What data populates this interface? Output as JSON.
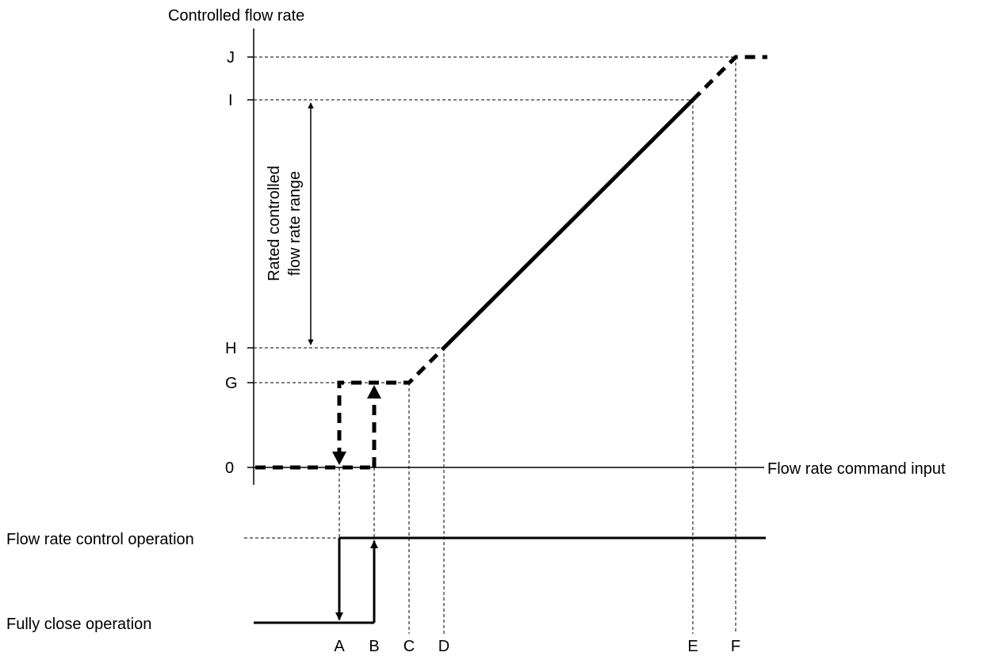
{
  "axes": {
    "y_title": "Controlled flow rate",
    "x_title": "Flow rate command input"
  },
  "y_ticks": [
    "J",
    "I",
    "H",
    "G",
    "0"
  ],
  "x_ticks": [
    "A",
    "B",
    "C",
    "D",
    "E",
    "F"
  ],
  "range_label": {
    "line1": "Rated controlled",
    "line2": "flow rate range"
  },
  "states": {
    "control": "Flow rate control operation",
    "close": "Fully close operation"
  }
}
